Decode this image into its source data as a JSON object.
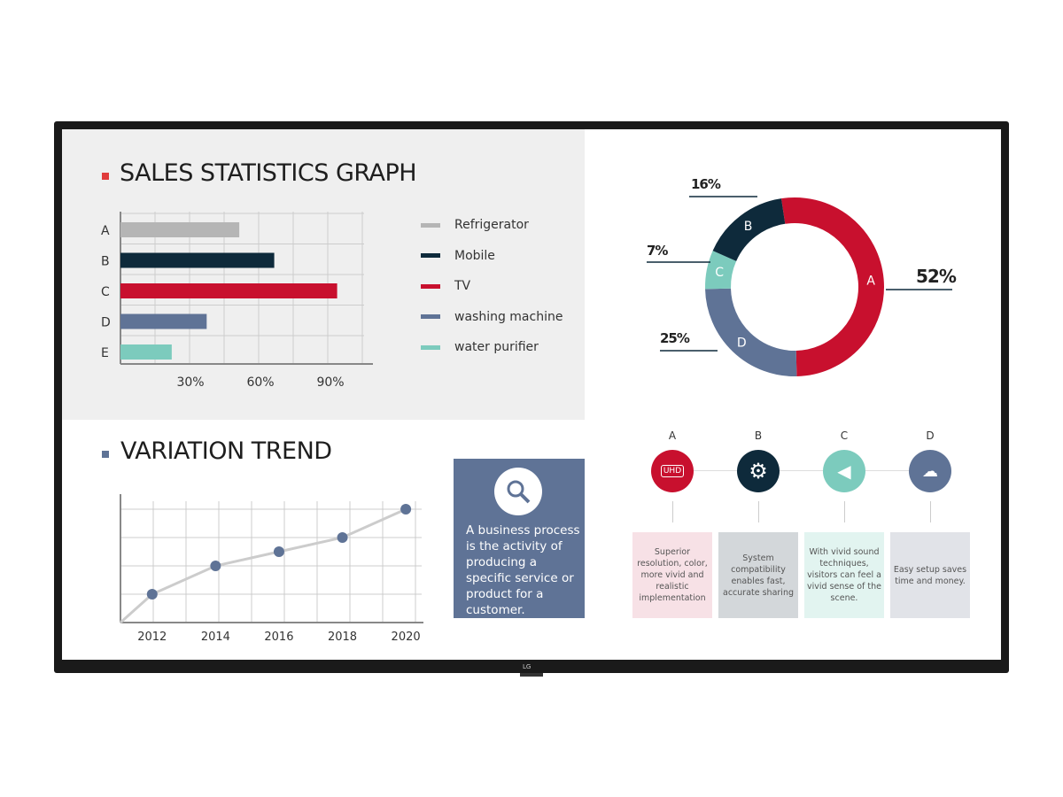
{
  "sales": {
    "title": "SALES STATISTICS GRAPH",
    "accent": "#e03c3c"
  },
  "trend": {
    "title": "VARIATION TREND",
    "accent": "#5f7396"
  },
  "business": {
    "text": "A business process is the activity of producing a specific service or product for a customer."
  },
  "features": [
    {
      "letter": "A",
      "icon": "uhd-icon",
      "icon_text": "UHD",
      "color": "#c8102e",
      "bg": "#f7e1e6",
      "text": "Superior resolution, color, more vivid and realistic implementation"
    },
    {
      "letter": "B",
      "icon": "gear-icon",
      "color": "#0e2a3b",
      "bg": "#d3d7da",
      "text": "System compatibility enables fast, accurate sharing"
    },
    {
      "letter": "C",
      "icon": "speaker-icon",
      "color": "#7ccbbd",
      "bg": "#e2f4f0",
      "text": "With vivid sound techniques, visitors can feel a vivid sense of the scene."
    },
    {
      "letter": "D",
      "icon": "network-icon",
      "color": "#5f7396",
      "bg": "#e1e3e8",
      "text": "Easy setup saves time and money."
    }
  ],
  "brand": "LG",
  "chart_data": [
    {
      "type": "bar",
      "orientation": "horizontal",
      "title": "SALES STATISTICS GRAPH",
      "categories": [
        "A",
        "B",
        "C",
        "D",
        "E"
      ],
      "values": [
        51,
        66,
        93,
        37,
        22
      ],
      "colors": [
        "#b5b5b5",
        "#0e2a3b",
        "#c8102e",
        "#5f7396",
        "#7ccbbd"
      ],
      "xticks": [
        "30%",
        "60%",
        "90%"
      ],
      "xlim": [
        0,
        105
      ],
      "legend": [
        "Refrigerator",
        "Mobile",
        "TV",
        "washing machine",
        "water purifier"
      ],
      "legend_placement": "right",
      "grid": true
    },
    {
      "type": "line",
      "title": "VARIATION TREND",
      "x": [
        2012,
        2014,
        2016,
        2018,
        2020
      ],
      "xticks": [
        "2012",
        "2014",
        "2016",
        "2018",
        "2020"
      ],
      "values": [
        1,
        2,
        2.5,
        3,
        4
      ],
      "ylim": [
        0,
        4
      ],
      "xlim": [
        2011,
        2020.5
      ],
      "grid": true
    },
    {
      "type": "pie",
      "donut": true,
      "labels": [
        "A",
        "B",
        "C",
        "D"
      ],
      "values": [
        52,
        16,
        7,
        25
      ],
      "value_labels": [
        "52%",
        "16%",
        "7%",
        "25%"
      ],
      "colors": [
        "#c8102e",
        "#0e2a3b",
        "#7ccbbd",
        "#5f7396"
      ]
    }
  ]
}
